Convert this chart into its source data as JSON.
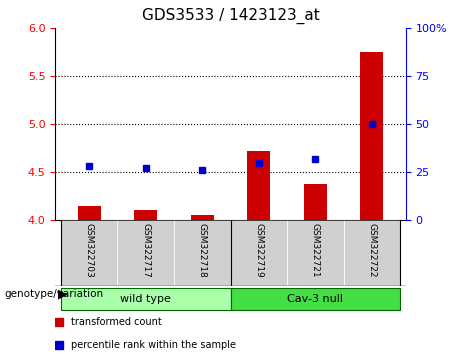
{
  "title": "GDS3533 / 1423123_at",
  "samples": [
    "GSM322703",
    "GSM322717",
    "GSM322718",
    "GSM322719",
    "GSM322721",
    "GSM322722"
  ],
  "groups": [
    "wild type",
    "wild type",
    "wild type",
    "Cav-3 null",
    "Cav-3 null",
    "Cav-3 null"
  ],
  "group_labels": [
    "wild type",
    "Cav-3 null"
  ],
  "transformed_counts": [
    4.15,
    4.1,
    4.05,
    4.72,
    4.38,
    5.75
  ],
  "percentile_ranks": [
    28,
    27,
    26,
    30,
    32,
    50
  ],
  "bar_color": "#cc0000",
  "dot_color": "#0000cc",
  "left_ylim": [
    4.0,
    6.0
  ],
  "left_yticks": [
    4.0,
    4.5,
    5.0,
    5.5,
    6.0
  ],
  "right_ylim": [
    0,
    100
  ],
  "right_yticks": [
    0,
    25,
    50,
    75,
    100
  ],
  "right_yticklabels": [
    "0",
    "25",
    "50",
    "75",
    "100%"
  ],
  "hlines": [
    4.5,
    5.0,
    5.5
  ],
  "wild_type_color": "#aaffaa",
  "cav3_null_color": "#44dd44",
  "bg_color_samples": "#d0d0d0",
  "legend_red_label": "transformed count",
  "legend_blue_label": "percentile rank within the sample",
  "genotype_label": "genotype/variation"
}
